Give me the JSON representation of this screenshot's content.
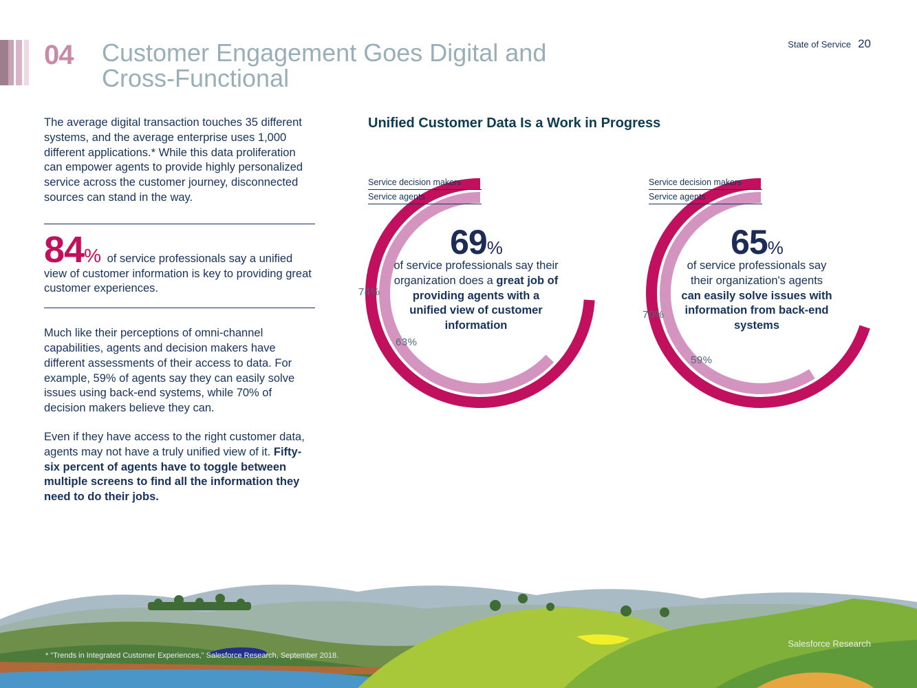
{
  "colors": {
    "title_gray": "#98aeb8",
    "section_num": "#c98aa8",
    "magenta": "#c0105e",
    "pink": "#d494c0",
    "navy": "#1d2b57",
    "body_text": "#16325c"
  },
  "header": {
    "section_number": "04",
    "title": "Customer Engagement Goes Digital and Cross-Functional",
    "runner_label": "State of Service",
    "page_number": "20"
  },
  "left_column": {
    "intro": "The average digital transaction touches 35 different systems, and the average enterprise uses 1,000 different applications.* While this data proliferation can empower agents to provide highly personalized service across the customer journey, disconnected sources can stand in the way.",
    "stat_value": "84",
    "stat_pct": "%",
    "stat_text": "of service professionals say a unified view of customer information is key to providing great customer experiences.",
    "para2": "Much like their perceptions of omni-channel capabilities, agents and decision makers have different assessments of their access to data. For example, 59% of agents say they can easily solve issues using back-end systems, while 70% of decision makers believe they can.",
    "para3_plain": "Even if they have access to the right customer data, agents may not have a truly unified view of it.",
    "para3_bold": "Fifty-six percent of agents have to toggle between multiple screens to find all the information they need to do their jobs."
  },
  "chart_title": "Unified Customer Data Is a Work in Progress",
  "chart_data": [
    {
      "type": "donut",
      "series": [
        {
          "name": "Service decision makers",
          "value": 74
        },
        {
          "name": "Service agents",
          "value": 63
        }
      ],
      "value_labels": [
        "74%",
        "63%"
      ],
      "headline_value": "69",
      "headline_pct": "%",
      "caption_plain": "of service professionals say their organization does a",
      "caption_bold": "great job of providing agents with a unified view of customer information"
    },
    {
      "type": "donut",
      "series": [
        {
          "name": "Service decision makers",
          "value": 70
        },
        {
          "name": "Service agents",
          "value": 59
        }
      ],
      "value_labels": [
        "70%",
        "59%"
      ],
      "headline_value": "65",
      "headline_pct": "%",
      "caption_plain": "of service professionals say their organization's agents",
      "caption_bold": "can easily solve issues with information from back-end systems"
    }
  ],
  "footer": {
    "footnote": "* \"Trends in Integrated Customer Experiences,\" Salesforce Research, September 2018.",
    "credit": "Salesforce Research"
  }
}
